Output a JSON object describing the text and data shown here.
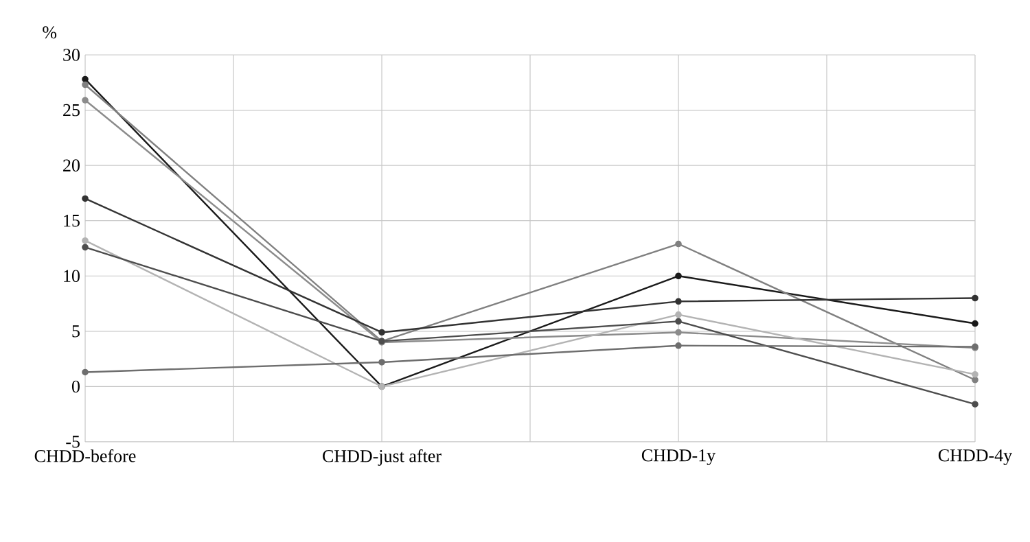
{
  "chart_data": {
    "type": "line",
    "ylabel": "%",
    "categories": [
      "CHDD-before",
      "CHDD-just after",
      "CHDD-1y",
      "CHDD-4y"
    ],
    "ylim": [
      -5,
      30
    ],
    "yticks": [
      -5,
      0,
      5,
      10,
      15,
      20,
      25,
      30
    ],
    "grid": true,
    "marker": "circle",
    "line_style": "solid",
    "series": [
      {
        "color": "#1a1a1a",
        "values": [
          27.8,
          0,
          10.0,
          5.7
        ]
      },
      {
        "color": "#808080",
        "values": [
          27.3,
          4.1,
          12.9,
          0.6
        ]
      },
      {
        "color": "#8c8c8c",
        "values": [
          25.9,
          4.0,
          4.9,
          3.5
        ]
      },
      {
        "color": "#333333",
        "values": [
          17.0,
          4.9,
          7.7,
          8.0
        ]
      },
      {
        "color": "#b3b3b3",
        "values": [
          13.2,
          0,
          6.5,
          1.1
        ]
      },
      {
        "color": "#4d4d4d",
        "values": [
          12.6,
          4.1,
          5.9,
          -1.6
        ]
      },
      {
        "color": "#6e6e6e",
        "values": [
          1.3,
          2.2,
          3.7,
          3.6
        ]
      }
    ]
  }
}
